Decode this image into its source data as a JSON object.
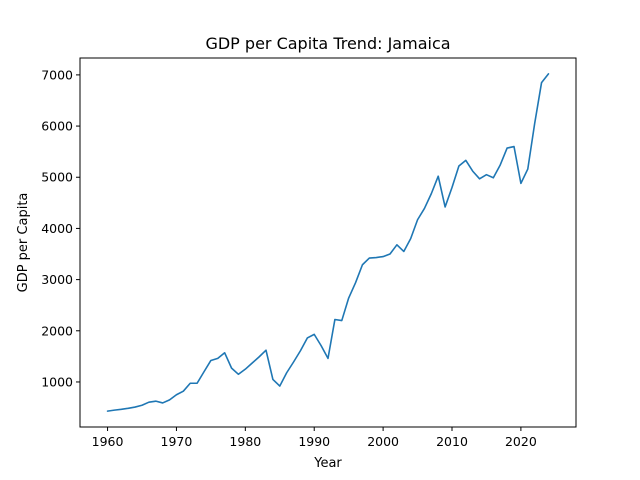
{
  "chart_data": {
    "type": "line",
    "title": "GDP per Capita Trend: Jamaica",
    "xlabel": "Year",
    "ylabel": "GDP per Capita",
    "xlim": [
      1956,
      2028
    ],
    "ylim": [
      120,
      7330
    ],
    "xticks": [
      1960,
      1970,
      1980,
      1990,
      2000,
      2010,
      2020
    ],
    "yticks": [
      1000,
      2000,
      3000,
      4000,
      5000,
      6000,
      7000
    ],
    "grid": false,
    "legend": "none",
    "series": [
      {
        "color": "#1f77b4",
        "x": [
          1960,
          1961,
          1962,
          1963,
          1964,
          1965,
          1966,
          1967,
          1968,
          1969,
          1970,
          1971,
          1972,
          1973,
          1974,
          1975,
          1976,
          1977,
          1978,
          1979,
          1980,
          1981,
          1982,
          1983,
          1984,
          1985,
          1986,
          1987,
          1988,
          1989,
          1990,
          1991,
          1992,
          1993,
          1994,
          1995,
          1996,
          1997,
          1998,
          1999,
          2000,
          2001,
          2002,
          2003,
          2004,
          2005,
          2006,
          2007,
          2008,
          2009,
          2010,
          2011,
          2012,
          2013,
          2014,
          2015,
          2016,
          2017,
          2018,
          2019,
          2020,
          2021,
          2022,
          2023,
          2024
        ],
        "values": [
          430,
          450,
          465,
          485,
          510,
          545,
          605,
          625,
          590,
          650,
          750,
          820,
          975,
          975,
          1200,
          1420,
          1460,
          1570,
          1270,
          1150,
          1250,
          1370,
          1490,
          1620,
          1050,
          920,
          1180,
          1390,
          1610,
          1860,
          1930,
          1710,
          1460,
          2220,
          2200,
          2640,
          2940,
          3290,
          3420,
          3430,
          3450,
          3500,
          3680,
          3550,
          3800,
          4170,
          4390,
          4680,
          5020,
          4420,
          4800,
          5220,
          5330,
          5120,
          4970,
          5050,
          4990,
          5240,
          5570,
          5600,
          4880,
          5160,
          6050,
          6850,
          7020
        ]
      }
    ]
  }
}
